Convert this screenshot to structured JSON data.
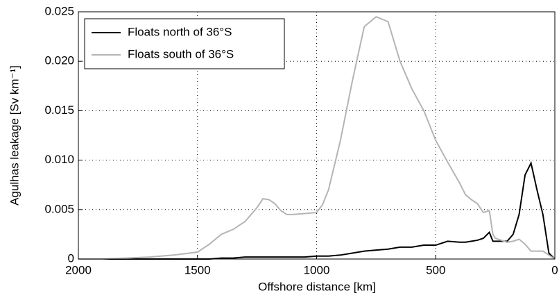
{
  "chart_data": {
    "type": "line",
    "xlabel": "Offshore distance [km]",
    "ylabel": "Agulhas leakage [Sv km⁻¹]",
    "x": [
      2000,
      1900,
      1800,
      1700,
      1600,
      1500,
      1450,
      1400,
      1350,
      1300,
      1250,
      1225,
      1200,
      1175,
      1150,
      1125,
      1100,
      1050,
      1000,
      975,
      950,
      900,
      850,
      800,
      750,
      700,
      650,
      600,
      550,
      500,
      450,
      400,
      375,
      350,
      325,
      300,
      275,
      260,
      250,
      200,
      175,
      150,
      125,
      100,
      75,
      50,
      25,
      0
    ],
    "series": [
      {
        "name": "Floats north of 36°S",
        "color": "#000000",
        "values": [
          0,
          0,
          0,
          0,
          0,
          0,
          0,
          0.0001,
          0.0001,
          0.0002,
          0.0002,
          0.0002,
          0.0002,
          0.0002,
          0.0002,
          0.0002,
          0.0002,
          0.0002,
          0.0003,
          0.0003,
          0.0003,
          0.0004,
          0.0006,
          0.0008,
          0.0009,
          0.001,
          0.0012,
          0.0012,
          0.0014,
          0.0014,
          0.0018,
          0.0017,
          0.0017,
          0.0018,
          0.0019,
          0.0021,
          0.0027,
          0.0018,
          0.0018,
          0.0018,
          0.0025,
          0.0045,
          0.0085,
          0.0097,
          0.007,
          0.0045,
          0.0006,
          0
        ]
      },
      {
        "name": "Floats south of 36°S",
        "color": "#b4b4b4",
        "values": [
          0,
          0,
          0.0001,
          0.0002,
          0.0004,
          0.0007,
          0.0015,
          0.0025,
          0.003,
          0.0038,
          0.0052,
          0.0061,
          0.006,
          0.0056,
          0.0049,
          0.0045,
          0.0045,
          0.0046,
          0.0047,
          0.0055,
          0.007,
          0.012,
          0.018,
          0.0235,
          0.0245,
          0.024,
          0.02,
          0.0172,
          0.015,
          0.012,
          0.0098,
          0.0077,
          0.0065,
          0.006,
          0.0056,
          0.0047,
          0.0049,
          0.0025,
          0.0021,
          0.0017,
          0.0018,
          0.002,
          0.0015,
          0.0008,
          0.0008,
          0.0008,
          0.0004,
          0
        ]
      }
    ],
    "xlim": [
      2000,
      0
    ],
    "xticks": [
      2000,
      1500,
      1000,
      500,
      0
    ],
    "ylim": [
      0,
      0.025
    ],
    "yticks": [
      0,
      0.005,
      {
        "value": 0.01,
        "label": "0.010"
      },
      0.015,
      {
        "value": 0.02,
        "label": "0.020"
      },
      0.025
    ],
    "grid": true,
    "legend": "upper left"
  }
}
